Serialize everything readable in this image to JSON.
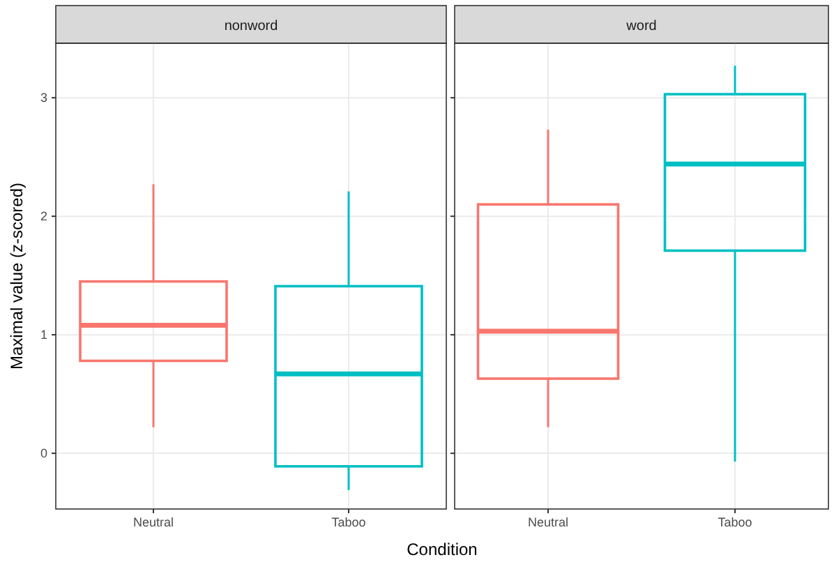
{
  "chart_data": [
    {
      "type": "box",
      "title": "nonword",
      "xlabel": "Condition",
      "ylabel": "Maximal value (z-scored)",
      "categories": [
        "Neutral",
        "Taboo"
      ],
      "colors": [
        "#f8766d",
        "#00bfc4"
      ],
      "boxes": [
        {
          "low": 0.22,
          "q1": 0.78,
          "median": 1.08,
          "q3": 1.45,
          "high": 2.27
        },
        {
          "low": -0.31,
          "q1": -0.11,
          "median": 0.67,
          "q3": 1.41,
          "high": 2.21
        }
      ],
      "ylim": [
        -0.47,
        3.46
      ],
      "yticks": [
        0,
        1,
        2,
        3
      ],
      "grid": true
    },
    {
      "type": "box",
      "title": "word",
      "categories": [
        "Neutral",
        "Taboo"
      ],
      "colors": [
        "#f8766d",
        "#00bfc4"
      ],
      "boxes": [
        {
          "low": 0.22,
          "q1": 0.63,
          "median": 1.03,
          "q3": 2.1,
          "high": 2.73
        },
        {
          "low": -0.07,
          "q1": 1.71,
          "median": 2.44,
          "q3": 3.03,
          "high": 3.27
        }
      ],
      "ylim": [
        -0.47,
        3.46
      ],
      "yticks": [
        0,
        1,
        2,
        3
      ],
      "grid": true,
      "tick_labels": "x"
    }
  ]
}
